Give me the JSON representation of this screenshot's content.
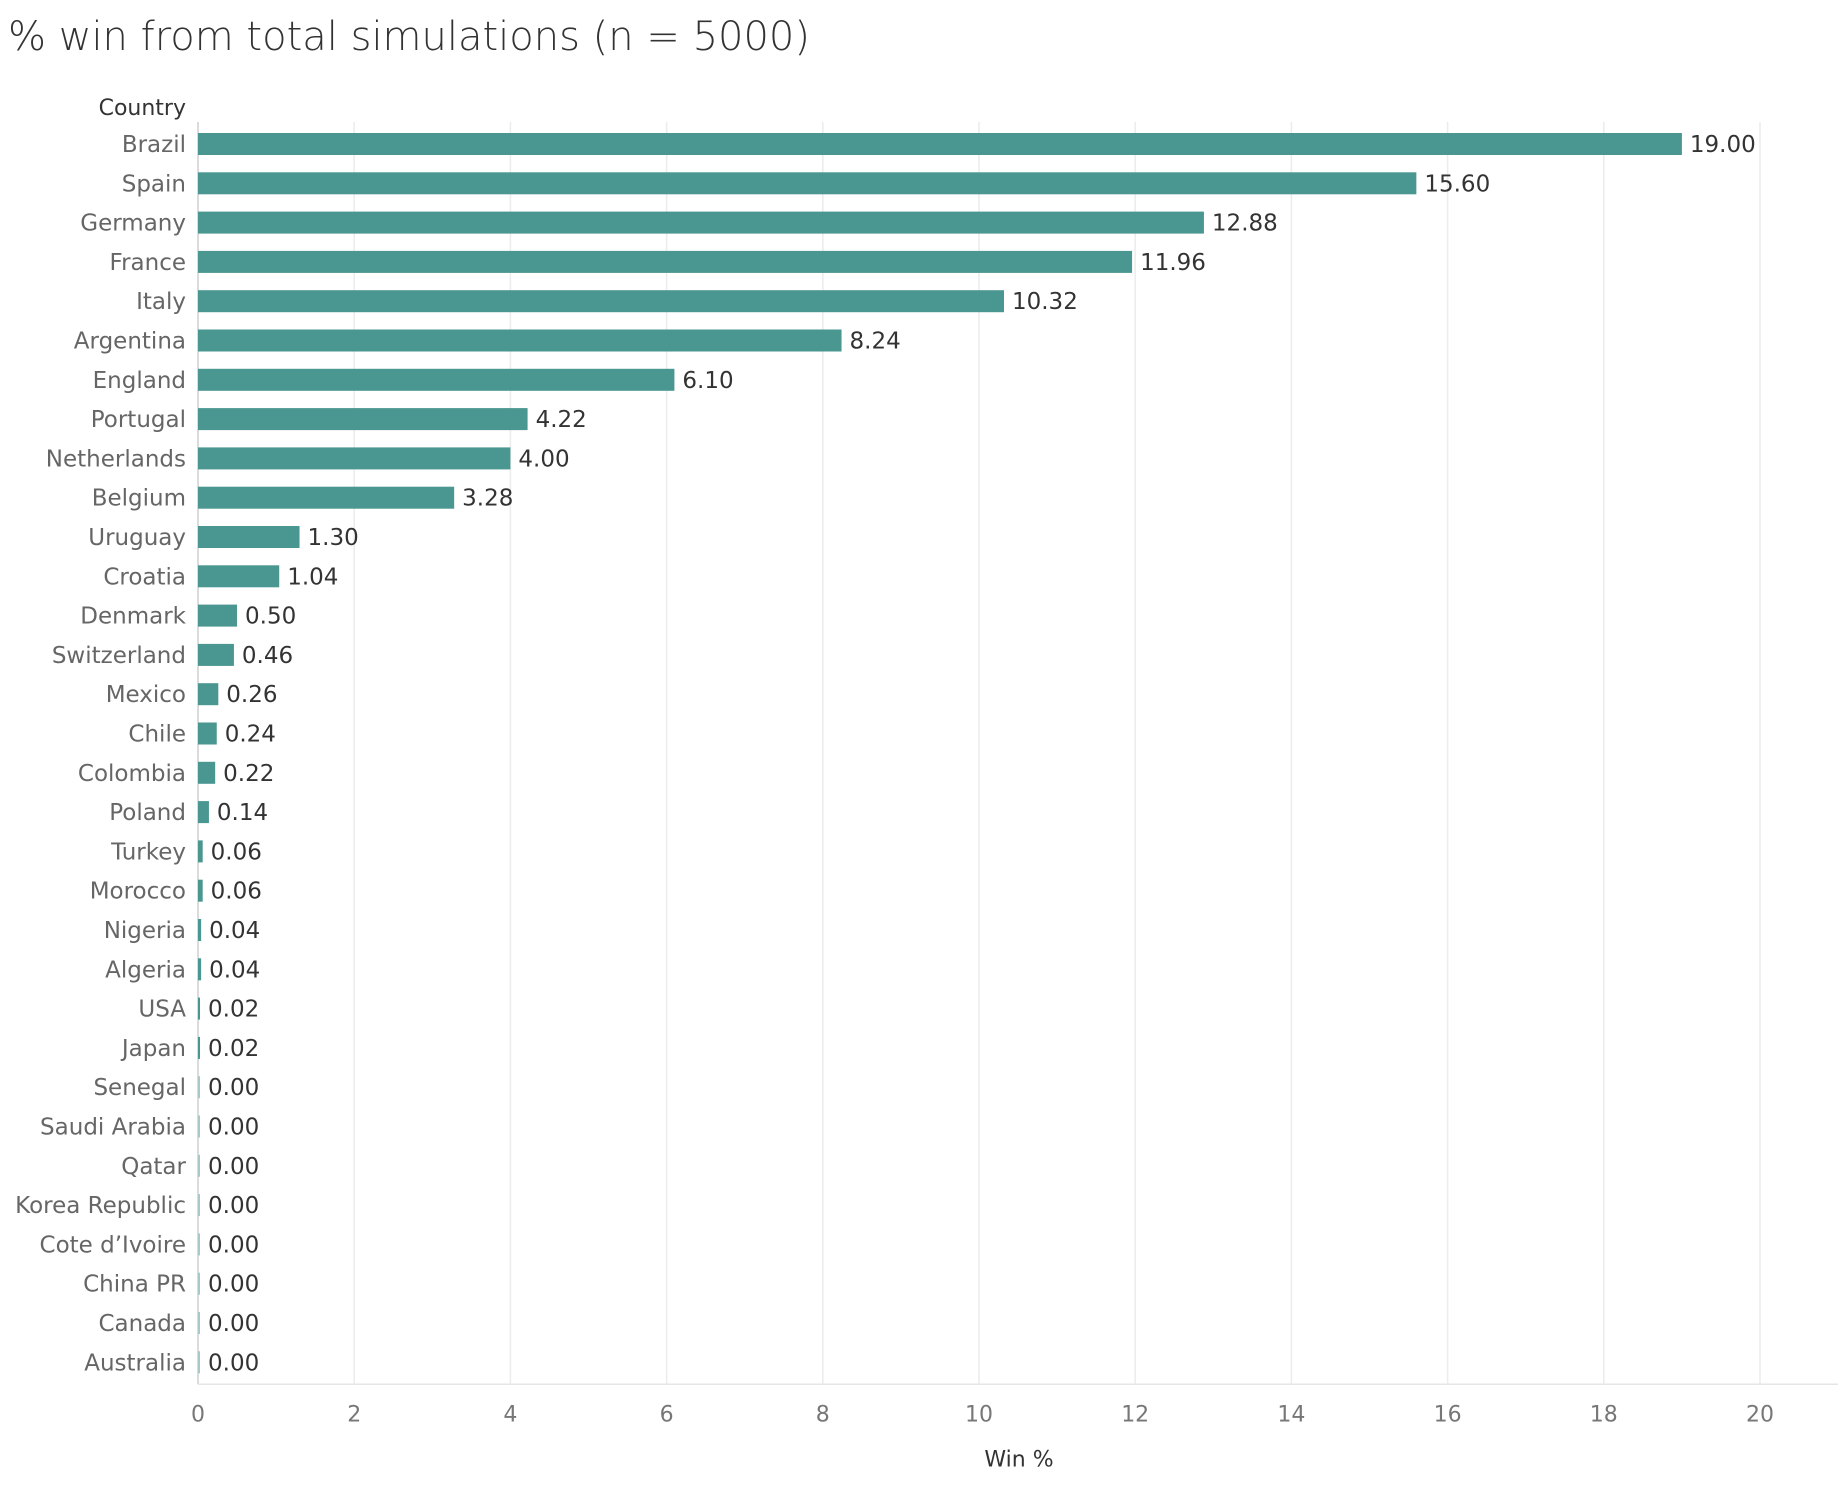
{
  "title": "% win from total simulations (n = 5000)",
  "chart_data": {
    "type": "bar",
    "orientation": "horizontal",
    "title": "% win from total simulations (n = 5000)",
    "ylabel": "Country",
    "xlabel": "Win %",
    "xlim": [
      0,
      20
    ],
    "xticks": [
      0,
      2,
      4,
      6,
      8,
      10,
      12,
      14,
      16,
      18,
      20
    ],
    "grid": "vertical",
    "bar_color": "#4a9690",
    "categories": [
      "Brazil",
      "Spain",
      "Germany",
      "France",
      "Italy",
      "Argentina",
      "England",
      "Portugal",
      "Netherlands",
      "Belgium",
      "Uruguay",
      "Croatia",
      "Denmark",
      "Switzerland",
      "Mexico",
      "Chile",
      "Colombia",
      "Poland",
      "Turkey",
      "Morocco",
      "Nigeria",
      "Algeria",
      "USA",
      "Japan",
      "Senegal",
      "Saudi Arabia",
      "Qatar",
      "Korea Republic",
      "Cote d’Ivoire",
      "China PR",
      "Canada",
      "Australia"
    ],
    "values": [
      19.0,
      15.6,
      12.88,
      11.96,
      10.32,
      8.24,
      6.1,
      4.22,
      4.0,
      3.28,
      1.3,
      1.04,
      0.5,
      0.46,
      0.26,
      0.24,
      0.22,
      0.14,
      0.06,
      0.06,
      0.04,
      0.04,
      0.02,
      0.02,
      0.0,
      0.0,
      0.0,
      0.0,
      0.0,
      0.0,
      0.0,
      0.0
    ],
    "value_labels": [
      "19.00",
      "15.60",
      "12.88",
      "11.96",
      "10.32",
      "8.24",
      "6.10",
      "4.22",
      "4.00",
      "3.28",
      "1.30",
      "1.04",
      "0.50",
      "0.46",
      "0.26",
      "0.24",
      "0.22",
      "0.14",
      "0.06",
      "0.06",
      "0.04",
      "0.04",
      "0.02",
      "0.02",
      "0.00",
      "0.00",
      "0.00",
      "0.00",
      "0.00",
      "0.00",
      "0.00",
      "0.00"
    ]
  }
}
